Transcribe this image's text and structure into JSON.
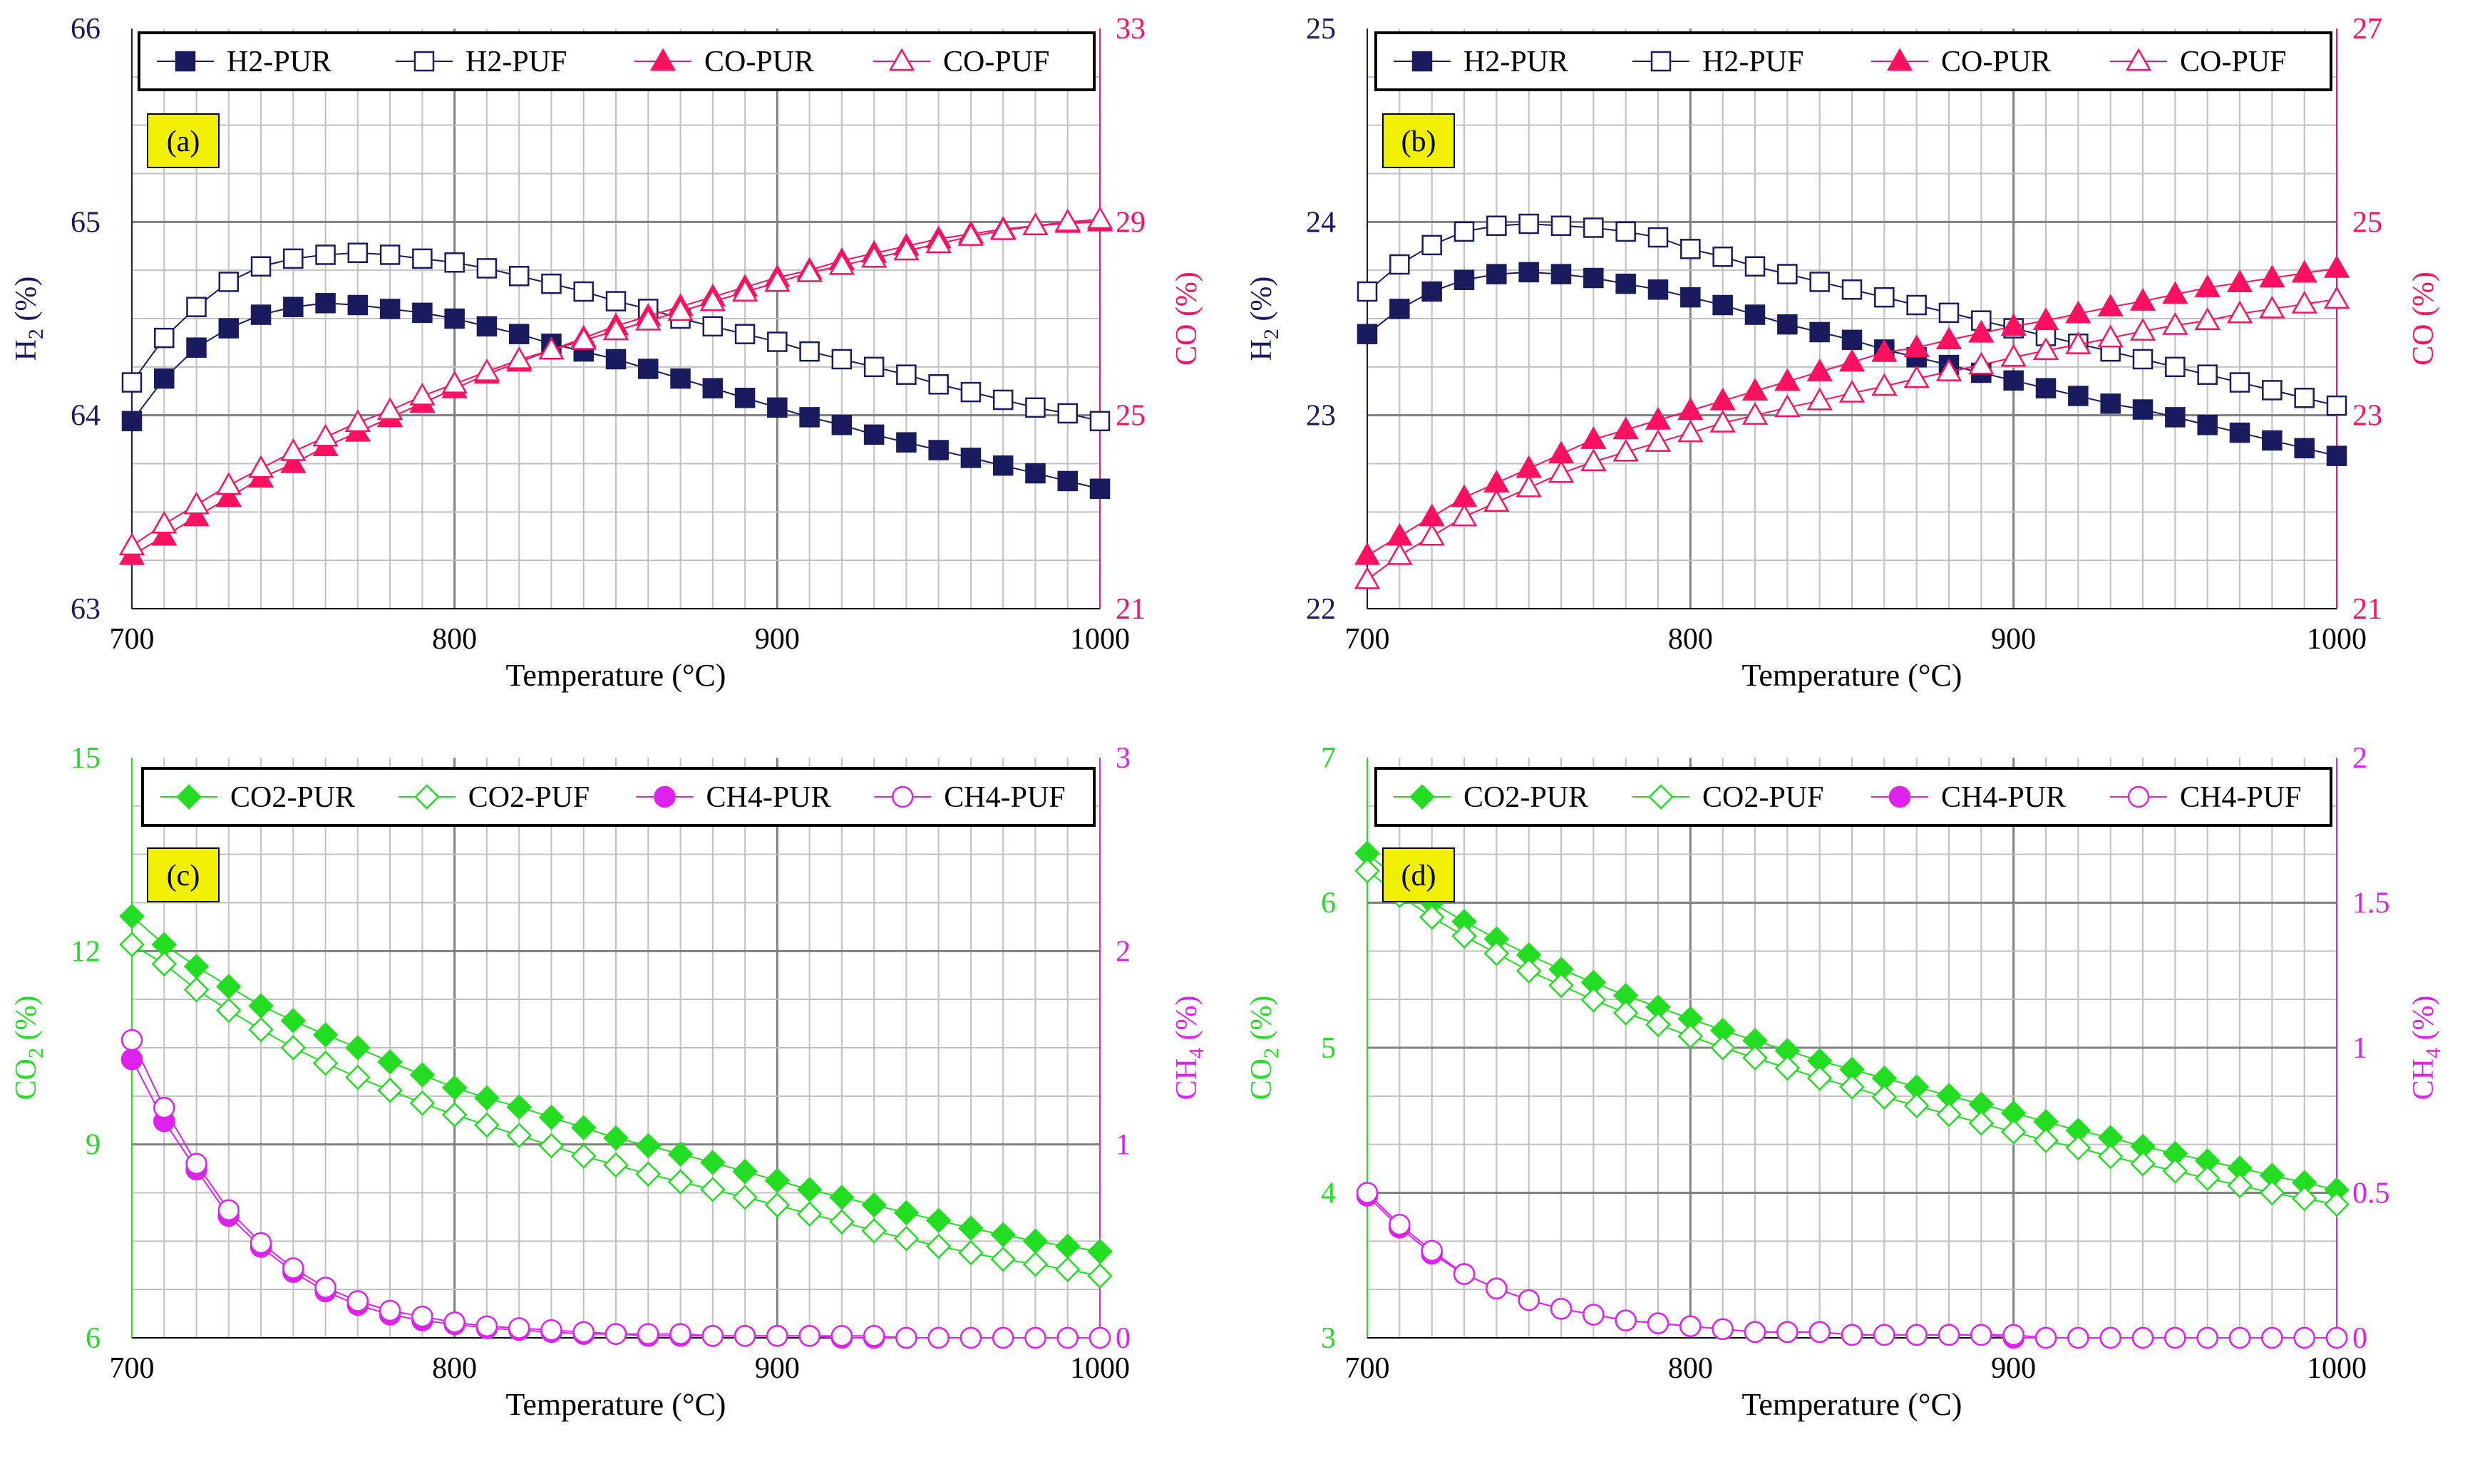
{
  "colors": {
    "h2": "#1a1a5e",
    "co": "#ff1060",
    "co2": "#22dd22",
    "ch4": "#dd22ee",
    "axis_left_ab": "#1a1a5e",
    "axis_right_ab": "#ff1060",
    "axis_left_cd": "#22dd22",
    "axis_right_cd": "#dd22ee",
    "label_box": "#f0f000"
  },
  "chart_data": [
    {
      "type": "line",
      "panel_label": "(a)",
      "xlabel": "Temperature (°C)",
      "ylabel_left": "H2 (%)",
      "ylabel_right": "CO (%)",
      "xlim": [
        700,
        1000
      ],
      "xticks": [
        700,
        800,
        900,
        1000
      ],
      "ylim_left": [
        63,
        66
      ],
      "yticks_left": [
        63,
        64,
        65,
        66
      ],
      "ylim_right": [
        21,
        33
      ],
      "yticks_right": [
        21,
        25,
        29,
        33
      ],
      "grid": true,
      "legend": "top",
      "x": [
        700,
        710,
        720,
        730,
        740,
        750,
        760,
        770,
        780,
        790,
        800,
        810,
        820,
        830,
        840,
        850,
        860,
        870,
        880,
        890,
        900,
        910,
        920,
        930,
        940,
        950,
        960,
        970,
        980,
        990,
        1000
      ],
      "series": [
        {
          "name": "H2-PUR",
          "axis": "left",
          "marker": "square",
          "filled": true,
          "color_key": "h2",
          "values": [
            63.97,
            64.19,
            64.35,
            64.45,
            64.52,
            64.56,
            64.58,
            64.57,
            64.55,
            64.53,
            64.5,
            64.46,
            64.42,
            64.37,
            64.33,
            64.29,
            64.24,
            64.19,
            64.14,
            64.09,
            64.04,
            63.99,
            63.95,
            63.9,
            63.86,
            63.82,
            63.78,
            63.74,
            63.7,
            63.66,
            63.62
          ]
        },
        {
          "name": "H2-PUF",
          "axis": "left",
          "marker": "square",
          "filled": false,
          "color_key": "h2",
          "values": [
            64.17,
            64.4,
            64.56,
            64.69,
            64.77,
            64.81,
            64.83,
            64.84,
            64.83,
            64.81,
            64.79,
            64.76,
            64.72,
            64.68,
            64.64,
            64.59,
            64.55,
            64.5,
            64.46,
            64.42,
            64.38,
            64.33,
            64.29,
            64.25,
            64.21,
            64.16,
            64.12,
            64.08,
            64.04,
            64.01,
            63.97
          ]
        },
        {
          "name": "CO-PUR",
          "axis": "right",
          "marker": "triangle",
          "filled": true,
          "color_key": "co",
          "values": [
            22.1,
            22.5,
            22.9,
            23.3,
            23.7,
            24.0,
            24.35,
            24.65,
            24.95,
            25.25,
            25.55,
            25.85,
            26.1,
            26.35,
            26.6,
            26.85,
            27.05,
            27.25,
            27.45,
            27.65,
            27.85,
            28.0,
            28.2,
            28.35,
            28.5,
            28.65,
            28.75,
            28.85,
            28.92,
            28.97,
            29.0
          ]
        },
        {
          "name": "CO-PUF",
          "axis": "right",
          "marker": "triangle",
          "filled": false,
          "color_key": "co",
          "values": [
            22.3,
            22.75,
            23.15,
            23.55,
            23.9,
            24.25,
            24.55,
            24.85,
            25.1,
            25.4,
            25.65,
            25.9,
            26.15,
            26.35,
            26.55,
            26.75,
            26.95,
            27.15,
            27.35,
            27.55,
            27.75,
            27.95,
            28.1,
            28.25,
            28.4,
            28.55,
            28.7,
            28.82,
            28.92,
            29.0,
            29.05
          ]
        }
      ]
    },
    {
      "type": "line",
      "panel_label": "(b)",
      "xlabel": "Temperature (°C)",
      "ylabel_left": "H2 (%)",
      "ylabel_right": "CO (%)",
      "xlim": [
        700,
        1000
      ],
      "xticks": [
        700,
        800,
        900,
        1000
      ],
      "ylim_left": [
        22,
        25
      ],
      "yticks_left": [
        22,
        23,
        24,
        25
      ],
      "ylim_right": [
        21,
        27
      ],
      "yticks_right": [
        21,
        23,
        25,
        27
      ],
      "grid": true,
      "legend": "top",
      "x": [
        700,
        710,
        720,
        730,
        740,
        750,
        760,
        770,
        780,
        790,
        800,
        810,
        820,
        830,
        840,
        850,
        860,
        870,
        880,
        890,
        900,
        910,
        920,
        930,
        940,
        950,
        960,
        970,
        980,
        990,
        1000
      ],
      "series": [
        {
          "name": "H2-PUR",
          "axis": "left",
          "marker": "square",
          "filled": true,
          "color_key": "h2",
          "values": [
            23.42,
            23.55,
            23.64,
            23.7,
            23.73,
            23.74,
            23.73,
            23.71,
            23.68,
            23.65,
            23.61,
            23.57,
            23.52,
            23.47,
            23.43,
            23.39,
            23.34,
            23.3,
            23.26,
            23.22,
            23.18,
            23.14,
            23.1,
            23.06,
            23.03,
            22.99,
            22.95,
            22.91,
            22.87,
            22.83,
            22.79
          ]
        },
        {
          "name": "H2-PUF",
          "axis": "left",
          "marker": "square",
          "filled": false,
          "color_key": "h2",
          "values": [
            23.64,
            23.78,
            23.88,
            23.95,
            23.98,
            23.99,
            23.98,
            23.97,
            23.95,
            23.92,
            23.86,
            23.82,
            23.77,
            23.73,
            23.69,
            23.65,
            23.61,
            23.57,
            23.53,
            23.49,
            23.45,
            23.41,
            23.37,
            23.33,
            23.29,
            23.25,
            23.21,
            23.17,
            23.13,
            23.09,
            23.05
          ]
        },
        {
          "name": "CO-PUR",
          "axis": "right",
          "marker": "triangle",
          "filled": true,
          "color_key": "co",
          "values": [
            21.55,
            21.75,
            21.95,
            22.15,
            22.3,
            22.45,
            22.6,
            22.75,
            22.85,
            22.95,
            23.05,
            23.15,
            23.25,
            23.35,
            23.45,
            23.55,
            23.65,
            23.7,
            23.78,
            23.85,
            23.92,
            23.98,
            24.05,
            24.12,
            24.18,
            24.25,
            24.32,
            24.37,
            24.42,
            24.47,
            24.52
          ]
        },
        {
          "name": "CO-PUF",
          "axis": "right",
          "marker": "triangle",
          "filled": false,
          "color_key": "co",
          "values": [
            21.3,
            21.55,
            21.75,
            21.95,
            22.1,
            22.25,
            22.4,
            22.52,
            22.62,
            22.72,
            22.82,
            22.92,
            23.0,
            23.08,
            23.15,
            23.23,
            23.3,
            23.38,
            23.45,
            23.52,
            23.6,
            23.67,
            23.73,
            23.8,
            23.87,
            23.93,
            23.98,
            24.05,
            24.1,
            24.15,
            24.2
          ]
        }
      ]
    },
    {
      "type": "line",
      "panel_label": "(c)",
      "xlabel": "Temperature (°C)",
      "ylabel_left": "CO2 (%)",
      "ylabel_right": "CH4 (%)",
      "xlim": [
        700,
        1000
      ],
      "xticks": [
        700,
        800,
        900,
        1000
      ],
      "ylim_left": [
        6,
        15
      ],
      "yticks_left": [
        6,
        9,
        12,
        15
      ],
      "ylim_right": [
        0,
        3
      ],
      "yticks_right": [
        0,
        1,
        2,
        3
      ],
      "grid": true,
      "legend": "top",
      "x": [
        700,
        710,
        720,
        730,
        740,
        750,
        760,
        770,
        780,
        790,
        800,
        810,
        820,
        830,
        840,
        850,
        860,
        870,
        880,
        890,
        900,
        910,
        920,
        930,
        940,
        950,
        960,
        970,
        980,
        990,
        1000
      ],
      "series": [
        {
          "name": "CO2-PUR",
          "axis": "left",
          "marker": "diamond",
          "filled": true,
          "color_key": "co2",
          "values": [
            12.54,
            12.1,
            11.76,
            11.45,
            11.15,
            10.92,
            10.7,
            10.5,
            10.28,
            10.08,
            9.88,
            9.72,
            9.58,
            9.42,
            9.26,
            9.1,
            8.98,
            8.85,
            8.72,
            8.58,
            8.44,
            8.3,
            8.18,
            8.06,
            7.94,
            7.82,
            7.7,
            7.6,
            7.5,
            7.42,
            7.34
          ]
        },
        {
          "name": "CO2-PUF",
          "axis": "left",
          "marker": "diamond",
          "filled": false,
          "color_key": "co2",
          "values": [
            12.1,
            11.8,
            11.4,
            11.08,
            10.78,
            10.5,
            10.26,
            10.04,
            9.84,
            9.64,
            9.46,
            9.3,
            9.14,
            8.98,
            8.82,
            8.68,
            8.54,
            8.42,
            8.3,
            8.18,
            8.06,
            7.92,
            7.8,
            7.66,
            7.54,
            7.42,
            7.32,
            7.22,
            7.14,
            7.06,
            6.96
          ]
        },
        {
          "name": "CH4-PUR",
          "axis": "right",
          "marker": "circle",
          "filled": true,
          "color_key": "ch4",
          "values": [
            1.44,
            1.12,
            0.87,
            0.63,
            0.47,
            0.34,
            0.24,
            0.17,
            0.12,
            0.09,
            0.07,
            0.05,
            0.04,
            0.03,
            0.02,
            0.02,
            0.01,
            0.01,
            0.01,
            0.01,
            0.01,
            0.01,
            0.0,
            0.0,
            0.0,
            0.0,
            0.0,
            0.0,
            0.0,
            0.0,
            0.0
          ]
        },
        {
          "name": "CH4-PUF",
          "axis": "right",
          "marker": "circle",
          "filled": false,
          "color_key": "ch4",
          "values": [
            1.54,
            1.19,
            0.9,
            0.66,
            0.49,
            0.36,
            0.26,
            0.19,
            0.14,
            0.11,
            0.08,
            0.06,
            0.05,
            0.04,
            0.03,
            0.02,
            0.02,
            0.02,
            0.01,
            0.01,
            0.01,
            0.01,
            0.01,
            0.01,
            0.0,
            0.0,
            0.0,
            0.0,
            0.0,
            0.0,
            0.0
          ]
        }
      ]
    },
    {
      "type": "line",
      "panel_label": "(d)",
      "xlabel": "Temperature (°C)",
      "ylabel_left": "CO2 (%)",
      "ylabel_right": "CH4 (%)",
      "xlim": [
        700,
        1000
      ],
      "xticks": [
        700,
        800,
        900,
        1000
      ],
      "ylim_left": [
        3,
        7
      ],
      "yticks_left": [
        3,
        4,
        5,
        6,
        7
      ],
      "ylim_right": [
        0,
        2
      ],
      "yticks_right": [
        0,
        0.5,
        1,
        1.5,
        2
      ],
      "ytick_labels_right": [
        "0",
        "0.5",
        "1",
        "1.5",
        "2"
      ],
      "grid": true,
      "legend": "top",
      "x": [
        700,
        710,
        720,
        730,
        740,
        750,
        760,
        770,
        780,
        790,
        800,
        810,
        820,
        830,
        840,
        850,
        860,
        870,
        880,
        890,
        900,
        910,
        920,
        930,
        940,
        950,
        960,
        970,
        980,
        990,
        1000
      ],
      "series": [
        {
          "name": "CO2-PUR",
          "axis": "left",
          "marker": "diamond",
          "filled": true,
          "color_key": "co2",
          "values": [
            6.34,
            6.15,
            6.0,
            5.87,
            5.75,
            5.64,
            5.54,
            5.45,
            5.36,
            5.28,
            5.2,
            5.12,
            5.05,
            4.98,
            4.91,
            4.85,
            4.79,
            4.73,
            4.67,
            4.61,
            4.55,
            4.49,
            4.43,
            4.38,
            4.32,
            4.27,
            4.22,
            4.17,
            4.12,
            4.07,
            4.02
          ]
        },
        {
          "name": "CO2-PUF",
          "axis": "left",
          "marker": "diamond",
          "filled": false,
          "color_key": "co2",
          "values": [
            6.22,
            6.05,
            5.9,
            5.77,
            5.65,
            5.53,
            5.43,
            5.33,
            5.24,
            5.16,
            5.08,
            5.0,
            4.93,
            4.86,
            4.79,
            4.73,
            4.66,
            4.6,
            4.54,
            4.48,
            4.42,
            4.36,
            4.31,
            4.25,
            4.2,
            4.15,
            4.1,
            4.05,
            4.0,
            3.96,
            3.92
          ]
        },
        {
          "name": "CH4-PUR",
          "axis": "right",
          "marker": "circle",
          "filled": true,
          "color_key": "ch4",
          "values": [
            0.49,
            0.38,
            0.29,
            0.22,
            0.17,
            0.13,
            0.1,
            0.08,
            0.06,
            0.05,
            0.04,
            0.03,
            0.02,
            0.02,
            0.02,
            0.01,
            0.01,
            0.01,
            0.01,
            0.01,
            0.0,
            0.0,
            0.0,
            0.0,
            0.0,
            0.0,
            0.0,
            0.0,
            0.0,
            0.0,
            0.0
          ]
        },
        {
          "name": "CH4-PUF",
          "axis": "right",
          "marker": "circle",
          "filled": false,
          "color_key": "ch4",
          "values": [
            0.5,
            0.39,
            0.3,
            0.22,
            0.17,
            0.13,
            0.1,
            0.08,
            0.06,
            0.05,
            0.04,
            0.03,
            0.02,
            0.02,
            0.02,
            0.01,
            0.01,
            0.01,
            0.01,
            0.01,
            0.01,
            0.0,
            0.0,
            0.0,
            0.0,
            0.0,
            0.0,
            0.0,
            0.0,
            0.0,
            0.0
          ]
        }
      ]
    }
  ]
}
